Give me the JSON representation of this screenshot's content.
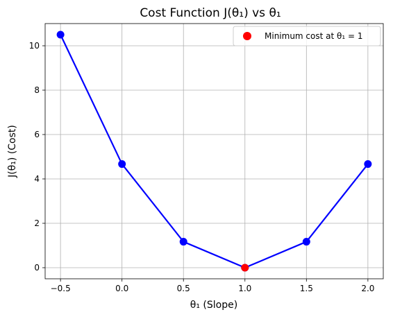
{
  "chart_data": {
    "type": "line",
    "title": "Cost Function J(θ₁) vs θ₁",
    "xlabel": "θ₁ (Slope)",
    "ylabel": "J(θ₁) (Cost)",
    "xlim": [
      -0.625,
      2.125
    ],
    "ylim": [
      -0.5,
      11.0
    ],
    "x_ticks": [
      -0.5,
      0.0,
      0.5,
      1.0,
      1.5,
      2.0
    ],
    "x_tick_labels": [
      "−0.5",
      "0.0",
      "0.5",
      "1.0",
      "1.5",
      "2.0"
    ],
    "y_ticks": [
      0,
      2,
      4,
      6,
      8,
      10
    ],
    "y_tick_labels": [
      "0",
      "2",
      "4",
      "6",
      "8",
      "10"
    ],
    "grid": true,
    "series": [
      {
        "x": [
          -0.5,
          0.0,
          0.5,
          1.0,
          1.5,
          2.0
        ],
        "y": [
          10.5,
          4.67,
          1.17,
          0.0,
          1.17,
          4.67
        ],
        "color": "#0000ff",
        "marker": "circle"
      }
    ],
    "highlight": {
      "name": "Minimum cost at θ₁ = 1",
      "x": 1.0,
      "y": 0.0,
      "color": "#ff0000"
    },
    "legend": {
      "placement": "top-right",
      "entries": [
        "Minimum cost at θ₁ = 1"
      ]
    }
  }
}
